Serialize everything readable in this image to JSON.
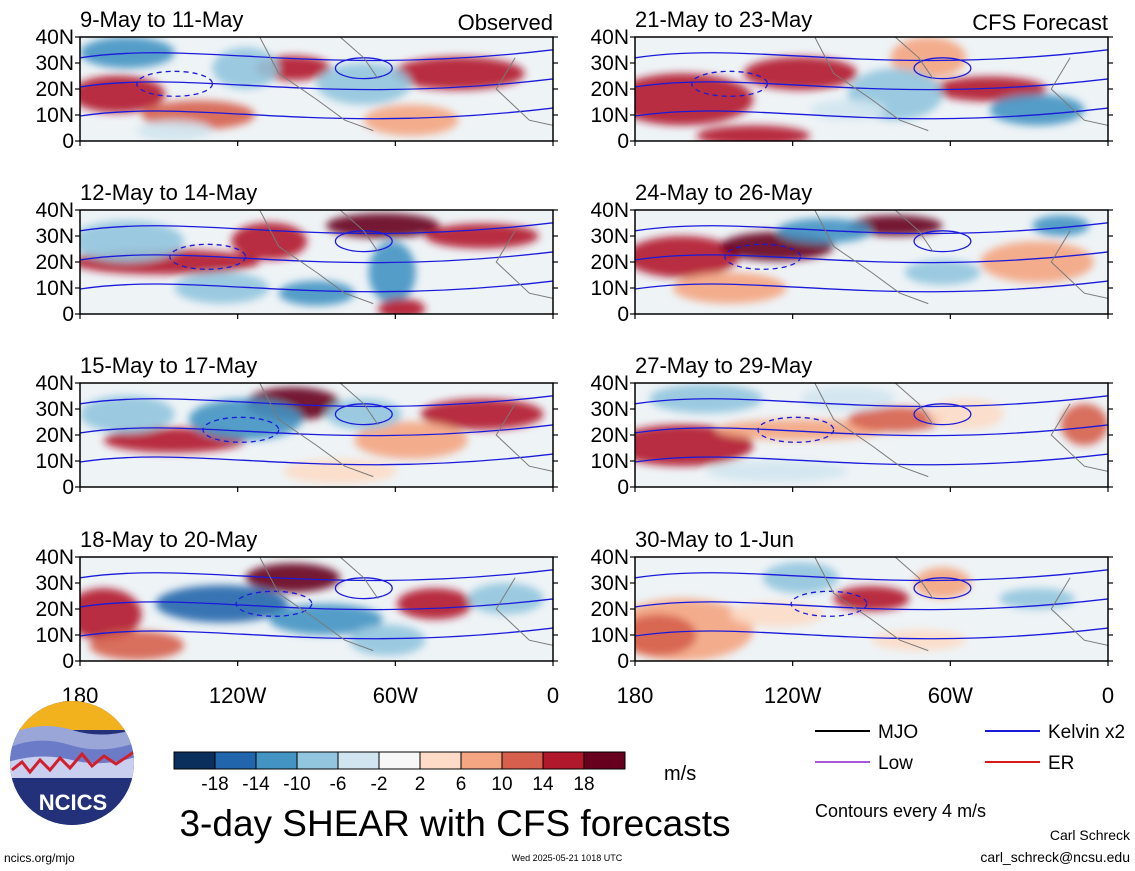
{
  "figure_title": "3-day SHEAR with CFS forecasts",
  "columns": {
    "left_label": "Observed",
    "right_label": "CFS Forecast"
  },
  "panels": [
    {
      "date": "9-May to 11-May",
      "kind": "observed"
    },
    {
      "date": "12-May to 14-May",
      "kind": "observed"
    },
    {
      "date": "15-May to 17-May",
      "kind": "observed"
    },
    {
      "date": "18-May to 20-May",
      "kind": "observed"
    },
    {
      "date": "21-May to 23-May",
      "kind": "forecast"
    },
    {
      "date": "24-May to 26-May",
      "kind": "forecast"
    },
    {
      "date": "27-May to 29-May",
      "kind": "forecast"
    },
    {
      "date": "30-May to 1-Jun",
      "kind": "forecast"
    }
  ],
  "lat_labels": [
    "40N",
    "30N",
    "20N",
    "10N",
    "0"
  ],
  "lon_labels": [
    "180",
    "120W",
    "60W",
    "0"
  ],
  "colorbar": {
    "labels": [
      "-18",
      "-14",
      "-10",
      "-6",
      "-2",
      "2",
      "6",
      "10",
      "14",
      "18"
    ],
    "colors": [
      "#0b2f5c",
      "#2166ac",
      "#4393c3",
      "#92c5de",
      "#d1e5f0",
      "#f7f7f7",
      "#fddbc7",
      "#f4a582",
      "#d6604d",
      "#b2182b",
      "#67001f"
    ],
    "unit": "m/s"
  },
  "legend": {
    "items": [
      {
        "label": "MJO",
        "color": "#000000"
      },
      {
        "label": "Kelvin x2",
        "color": "#1a1adb"
      },
      {
        "label": "Low",
        "color": "#a855d6"
      },
      {
        "label": "ER",
        "color": "#d91a1a"
      }
    ],
    "note": "Contours every 4 m/s"
  },
  "footer": {
    "site": "ncics.org/mjo",
    "timestamp": "Wed 2025-05-21 1018 UTC",
    "author": "Carl Schreck",
    "email": "carl_schreck@ncsu.edu"
  },
  "logo": {
    "text": "NCICS"
  }
}
